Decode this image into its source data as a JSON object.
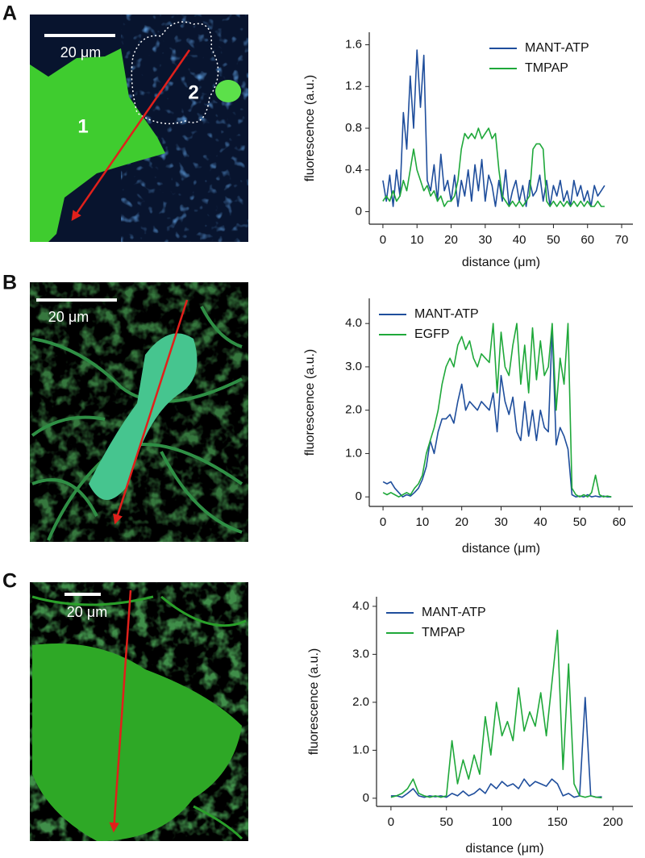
{
  "figure": {
    "panels": [
      {
        "label": "A",
        "scale_bar": "20 μm",
        "cell_labels": [
          "1",
          "2"
        ]
      },
      {
        "label": "B",
        "scale_bar": "20 μm"
      },
      {
        "label": "C",
        "scale_bar": "20 μm"
      }
    ]
  },
  "chart_data": [
    {
      "type": "line",
      "x_label": "distance (μm)",
      "y_label": "fluorescence (a.u.)",
      "legend": "upper right",
      "xlim": [
        -4,
        73.3
      ],
      "xticks": [
        0,
        10,
        20,
        30,
        40,
        50,
        60,
        70
      ],
      "ylim": [
        -0.12,
        1.72
      ],
      "yticks": [
        0,
        0.4,
        0.8,
        1.2,
        1.6
      ],
      "x": [
        0,
        1,
        2,
        3,
        4,
        5,
        6,
        7,
        8,
        9,
        10,
        11,
        12,
        13,
        14,
        15,
        16,
        17,
        18,
        19,
        20,
        21,
        22,
        23,
        24,
        25,
        26,
        27,
        28,
        29,
        30,
        31,
        32,
        33,
        34,
        35,
        36,
        37,
        38,
        39,
        40,
        41,
        42,
        43,
        44,
        45,
        46,
        47,
        48,
        49,
        50,
        51,
        52,
        53,
        54,
        55,
        56,
        57,
        58,
        59,
        60,
        61,
        62,
        63,
        64,
        65
      ],
      "series": [
        {
          "name": "MANT-ATP",
          "color": "#1f4e9c",
          "values": [
            0.3,
            0.1,
            0.35,
            0.05,
            0.4,
            0.15,
            0.95,
            0.6,
            1.3,
            0.8,
            1.55,
            1.0,
            1.5,
            0.3,
            0.2,
            0.45,
            0.1,
            0.55,
            0.2,
            0.3,
            0.1,
            0.35,
            0.05,
            0.3,
            0.15,
            0.4,
            0.1,
            0.45,
            0.2,
            0.5,
            0.1,
            0.35,
            0.25,
            0.05,
            0.3,
            0.1,
            0.4,
            0.05,
            0.2,
            0.3,
            0.1,
            0.25,
            0.05,
            0.3,
            0.15,
            0.2,
            0.35,
            0.1,
            0.3,
            0.05,
            0.25,
            0.15,
            0.3,
            0.1,
            0.2,
            0.05,
            0.3,
            0.15,
            0.25,
            0.1,
            0.2,
            0.05,
            0.25,
            0.15,
            0.2,
            0.25
          ]
        },
        {
          "name": "TMPAP",
          "color": "#1fa83a",
          "values": [
            0.1,
            0.15,
            0.1,
            0.2,
            0.1,
            0.15,
            0.3,
            0.2,
            0.4,
            0.6,
            0.4,
            0.3,
            0.2,
            0.25,
            0.15,
            0.2,
            0.1,
            0.15,
            0.05,
            0.1,
            0.1,
            0.15,
            0.3,
            0.6,
            0.75,
            0.7,
            0.75,
            0.7,
            0.8,
            0.7,
            0.75,
            0.8,
            0.7,
            0.75,
            0.4,
            0.15,
            0.1,
            0.05,
            0.1,
            0.05,
            0.1,
            0.05,
            0.1,
            0.15,
            0.6,
            0.65,
            0.65,
            0.6,
            0.1,
            0.05,
            0.1,
            0.05,
            0.1,
            0.05,
            0.1,
            0.05,
            0.1,
            0.05,
            0.1,
            0.05,
            0.1,
            0.05,
            0.05,
            0.1,
            0.05,
            0.05
          ]
        }
      ]
    },
    {
      "type": "line",
      "x_label": "distance (μm)",
      "y_label": "fluorescence (a.u.)",
      "legend": "upper left",
      "xlim": [
        -3.5,
        63.5
      ],
      "xticks": [
        0,
        10,
        20,
        30,
        40,
        50,
        60
      ],
      "ylim": [
        -0.22,
        4.58
      ],
      "yticks": [
        0,
        {
          "value": 1,
          "label": "1.0"
        },
        {
          "value": 2,
          "label": "2.0"
        },
        {
          "value": 3,
          "label": "3.0"
        },
        {
          "value": 4,
          "label": "4.0"
        }
      ],
      "x": [
        0,
        1,
        2,
        3,
        4,
        5,
        6,
        7,
        8,
        9,
        10,
        11,
        12,
        13,
        14,
        15,
        16,
        17,
        18,
        19,
        20,
        21,
        22,
        23,
        24,
        25,
        26,
        27,
        28,
        29,
        30,
        31,
        32,
        33,
        34,
        35,
        36,
        37,
        38,
        39,
        40,
        41,
        42,
        43,
        44,
        45,
        46,
        47,
        48,
        49,
        50,
        51,
        52,
        53,
        54,
        55,
        56,
        57,
        58
      ],
      "series": [
        {
          "name": "MANT-ATP",
          "color": "#1f4e9c",
          "values": [
            0.35,
            0.3,
            0.35,
            0.2,
            0.1,
            0.0,
            0.05,
            0.02,
            0.1,
            0.2,
            0.4,
            0.7,
            1.3,
            1.0,
            1.5,
            1.8,
            1.8,
            1.9,
            1.7,
            2.2,
            2.6,
            2.0,
            2.2,
            2.1,
            2.0,
            2.2,
            2.1,
            2.0,
            2.4,
            1.5,
            2.8,
            2.2,
            1.9,
            2.3,
            1.5,
            1.3,
            2.2,
            1.4,
            2.0,
            1.3,
            2.0,
            1.6,
            1.5,
            3.9,
            1.2,
            1.6,
            1.4,
            1.1,
            0.05,
            0.0,
            0.02,
            0.0,
            0.05,
            0.0,
            0.02,
            0.0,
            0.02,
            0.0,
            0.0
          ]
        },
        {
          "name": "EGFP",
          "color": "#1fa83a",
          "values": [
            0.1,
            0.05,
            0.1,
            0.05,
            0.0,
            0.05,
            0.1,
            0.05,
            0.2,
            0.3,
            0.5,
            1.0,
            1.3,
            1.6,
            2.0,
            2.6,
            3.0,
            3.2,
            3.0,
            3.5,
            3.7,
            3.4,
            3.6,
            3.2,
            3.0,
            3.3,
            3.2,
            3.1,
            4.0,
            2.4,
            3.8,
            3.0,
            2.8,
            3.5,
            4.0,
            2.6,
            3.5,
            2.4,
            3.9,
            2.7,
            3.6,
            2.8,
            3.0,
            4.0,
            2.0,
            3.2,
            2.6,
            4.0,
            0.2,
            0.05,
            0.0,
            0.05,
            0.0,
            0.1,
            0.5,
            0.05,
            0.0,
            0.02,
            0.0
          ]
        }
      ]
    },
    {
      "type": "line",
      "x_label": "distance (μm)",
      "y_label": "fluorescence (a.u.)",
      "legend": "upper left",
      "xlim": [
        -13,
        218
      ],
      "xticks": [
        0,
        50,
        100,
        150,
        200
      ],
      "ylim": [
        -0.17,
        4.2
      ],
      "yticks": [
        0,
        {
          "value": 1,
          "label": "1.0"
        },
        {
          "value": 2,
          "label": "2.0"
        },
        {
          "value": 3,
          "label": "3.0"
        },
        {
          "value": 4,
          "label": "4.0"
        }
      ],
      "x": [
        0,
        5,
        10,
        15,
        20,
        25,
        30,
        35,
        40,
        45,
        50,
        55,
        60,
        65,
        70,
        75,
        80,
        85,
        90,
        95,
        100,
        105,
        110,
        115,
        120,
        125,
        130,
        135,
        140,
        145,
        150,
        155,
        160,
        165,
        170,
        175,
        180,
        185,
        190
      ],
      "series": [
        {
          "name": "MANT-ATP",
          "color": "#1f4e9c",
          "values": [
            0.05,
            0.05,
            0.02,
            0.1,
            0.2,
            0.05,
            0.02,
            0.05,
            0.03,
            0.05,
            0.02,
            0.1,
            0.05,
            0.15,
            0.05,
            0.1,
            0.2,
            0.1,
            0.3,
            0.2,
            0.35,
            0.25,
            0.3,
            0.2,
            0.4,
            0.25,
            0.35,
            0.3,
            0.25,
            0.4,
            0.3,
            0.05,
            0.1,
            0.02,
            0.05,
            2.1,
            0.05,
            0.02,
            0.03
          ]
        },
        {
          "name": "TMPAP",
          "color": "#1fa83a",
          "values": [
            0.02,
            0.05,
            0.1,
            0.2,
            0.4,
            0.1,
            0.05,
            0.02,
            0.05,
            0.02,
            0.05,
            1.2,
            0.3,
            0.8,
            0.4,
            0.9,
            0.5,
            1.7,
            0.9,
            2.0,
            1.3,
            1.6,
            1.2,
            2.3,
            1.4,
            1.8,
            1.5,
            2.2,
            1.3,
            2.4,
            3.5,
            0.6,
            2.8,
            0.3,
            0.05,
            0.02,
            0.05,
            0.02,
            0.01
          ]
        }
      ]
    }
  ]
}
